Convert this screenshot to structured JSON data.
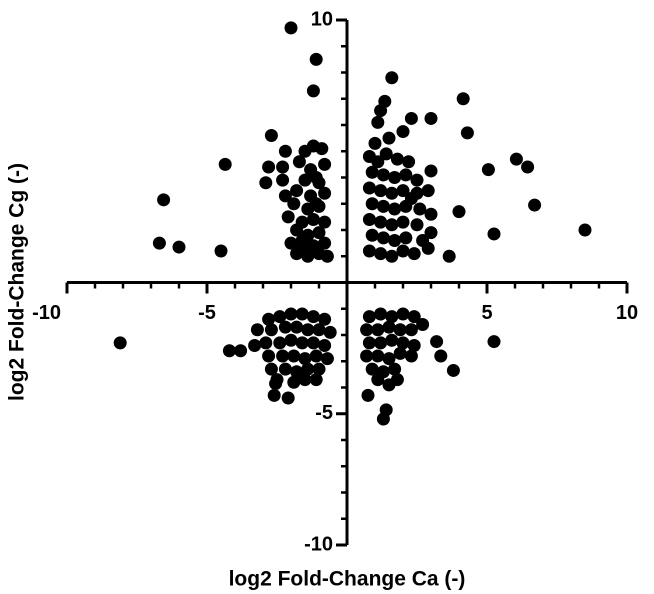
{
  "chart_data": {
    "type": "scatter",
    "xlabel": "log2 Fold-Change Ca (-)",
    "ylabel": "log2 Fold-Change Cg (-)",
    "color": "#000000",
    "xlim": [
      -10,
      10
    ],
    "ylim": [
      -10,
      10
    ],
    "xticks": [
      -10,
      -5,
      5,
      10
    ],
    "yticks": [
      -10,
      -5,
      10
    ],
    "x": [
      -2.0,
      -1.1,
      -1.2,
      1.6,
      1.35,
      1.2,
      1.1,
      4.15,
      4.3,
      3.0,
      2.3,
      2.0,
      -2.7,
      -4.35,
      -6.55,
      -6.7,
      -6.0,
      -4.5,
      6.05,
      5.05,
      6.45,
      6.7,
      5.25,
      8.5,
      4.0,
      3.65,
      3.0,
      2.9,
      3.0,
      -8.1,
      5.25,
      3.8,
      3.35,
      3.2,
      1.3,
      1.4,
      0.75,
      1.8,
      -2.6,
      -2.1,
      -2.55,
      -1.5,
      -1.2,
      -0.9,
      -2.2,
      -1.7,
      -1.3,
      -0.8,
      -2.8,
      -2.3,
      -1.5,
      -1.0,
      -2.9,
      -2.3,
      -1.8,
      -1.3,
      -0.8,
      -1.9,
      -1.4,
      -1.0,
      -2.1,
      -1.6,
      -1.2,
      -0.8,
      -1.8,
      -1.4,
      -1.0,
      -2.0,
      -1.6,
      -1.2,
      -0.8,
      -1.8,
      -1.4,
      -1.0,
      -0.7,
      -1.1,
      -1.6,
      -2.2,
      -1.1,
      0.8,
      1.1,
      1.4,
      1.8,
      2.2,
      0.9,
      1.3,
      1.7,
      2.1,
      2.5,
      0.8,
      1.2,
      1.6,
      2.0,
      2.5,
      0.9,
      1.3,
      1.7,
      2.1,
      2.6,
      0.8,
      1.2,
      1.6,
      2.0,
      2.5,
      0.9,
      1.3,
      1.7,
      2.1,
      2.7,
      0.8,
      1.2,
      1.6,
      2.0,
      2.4,
      2.9,
      1.0,
      1.5,
      2.3,
      3.0,
      -2.8,
      -2.4,
      -2.0,
      -1.6,
      -1.2,
      -0.8,
      -3.2,
      -2.7,
      -2.2,
      -1.8,
      -1.4,
      -1.0,
      -0.6,
      -3.3,
      -2.9,
      -2.4,
      -2.0,
      -1.6,
      -1.2,
      -0.8,
      -3.8,
      -2.8,
      -2.3,
      -1.9,
      -1.5,
      -1.1,
      -0.7,
      -2.7,
      -2.2,
      -1.8,
      -1.4,
      -1.0,
      -2.5,
      -1.9,
      -1.5,
      -1.1,
      -4.2,
      0.8,
      1.2,
      1.6,
      2.0,
      2.4,
      0.7,
      1.1,
      1.5,
      1.9,
      2.3,
      2.7,
      0.8,
      1.2,
      1.6,
      2.0,
      2.4,
      0.7,
      1.1,
      1.5,
      1.9,
      2.3,
      0.9,
      1.3,
      1.7,
      1.1,
      1.5
    ],
    "values": [
      9.7,
      8.5,
      7.3,
      7.8,
      6.9,
      6.55,
      6.1,
      7.0,
      5.7,
      6.25,
      6.25,
      5.75,
      5.6,
      4.5,
      3.15,
      1.5,
      1.35,
      1.2,
      4.7,
      4.3,
      4.4,
      2.95,
      1.85,
      2.0,
      2.7,
      1.0,
      1.9,
      3.5,
      4.25,
      -2.3,
      -2.25,
      -3.35,
      -2.8,
      -2.25,
      -5.2,
      -4.85,
      -4.3,
      -3.7,
      -4.3,
      -4.4,
      -3.85,
      5.0,
      5.2,
      5.1,
      5.0,
      4.6,
      4.3,
      4.5,
      4.4,
      4.4,
      3.9,
      3.8,
      3.8,
      3.9,
      3.5,
      3.3,
      3.4,
      3.0,
      2.8,
      2.9,
      2.5,
      2.3,
      2.4,
      2.3,
      2.0,
      1.8,
      1.9,
      1.5,
      1.3,
      1.4,
      1.5,
      1.1,
      1.0,
      1.1,
      1.0,
      3.0,
      1.6,
      3.3,
      4.0,
      4.8,
      4.6,
      4.9,
      4.7,
      4.6,
      4.2,
      4.1,
      4.0,
      4.1,
      3.9,
      3.6,
      3.5,
      3.4,
      3.5,
      3.4,
      3.0,
      2.9,
      2.8,
      2.9,
      2.8,
      2.4,
      2.3,
      2.2,
      2.3,
      2.2,
      1.8,
      1.7,
      1.6,
      1.7,
      1.6,
      1.2,
      1.1,
      1.0,
      1.2,
      1.1,
      1.3,
      5.3,
      5.5,
      3.2,
      2.6,
      -1.4,
      -1.3,
      -1.2,
      -1.2,
      -1.3,
      -1.4,
      -1.8,
      -1.8,
      -1.7,
      -1.7,
      -1.8,
      -1.8,
      -1.9,
      -2.4,
      -2.3,
      -2.3,
      -2.2,
      -2.3,
      -2.3,
      -2.4,
      -2.6,
      -2.8,
      -2.8,
      -2.8,
      -2.9,
      -2.8,
      -2.9,
      -3.3,
      -3.3,
      -3.4,
      -3.3,
      -3.3,
      -3.7,
      -3.8,
      -3.7,
      -3.7,
      -2.6,
      -1.3,
      -1.2,
      -1.3,
      -1.2,
      -1.3,
      -1.8,
      -1.8,
      -1.7,
      -1.8,
      -1.8,
      -1.6,
      -2.3,
      -2.3,
      -2.2,
      -2.3,
      -2.4,
      -2.8,
      -2.8,
      -2.9,
      -2.7,
      -2.8,
      -3.3,
      -3.4,
      -3.3,
      -3.7,
      -3.9
    ]
  }
}
